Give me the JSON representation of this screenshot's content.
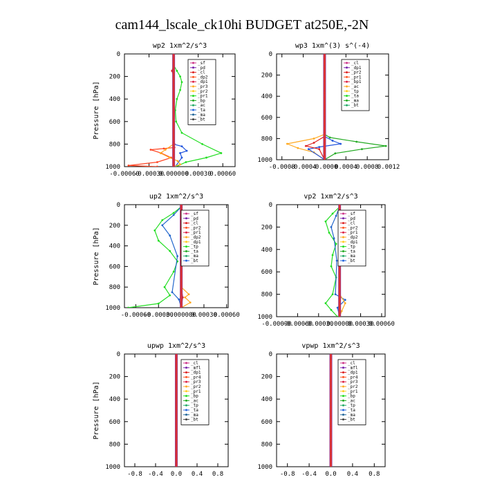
{
  "figure_title": "cam144_lscale_ck10hi  BUDGET at250E,-2N",
  "chart_data": [
    {
      "type": "line",
      "title": "wp2   1xm^2/s^3",
      "ylabel": "Pressure [hPa]",
      "ylim": [
        1000,
        0
      ],
      "yticks": [
        "0",
        "200",
        "400",
        "600",
        "800",
        "1000"
      ],
      "xlim": [
        -0.0006,
        0.00075
      ],
      "xticks": [
        {
          "v": -0.0006,
          "t": "-0.00060"
        },
        {
          "v": -0.0003,
          "t": "-0.00030"
        },
        {
          "v": 0,
          "t": "0.000000"
        },
        {
          "v": 0.0003,
          "t": "0.00030"
        },
        {
          "v": 0.0006,
          "t": "0.00060"
        }
      ],
      "legend": [
        "_sf",
        "_pd",
        "_cl",
        "_dp2",
        "_dp1",
        "_pr3",
        "_pr2",
        "_pr1",
        "_bp",
        "_ac",
        "_ta",
        "_ma",
        "_bt"
      ],
      "series": [
        {
          "name": "_pr1",
          "color": "#22dd22",
          "x": [
            0,
            4e-05,
            8e-05,
            0.0001,
            8e-05,
            4e-05,
            2e-05,
            3e-05,
            0.0001,
            0.00035,
            0.00058,
            0.0004,
            0.00015,
            3e-05
          ],
          "y": [
            100,
            150,
            200,
            250,
            320,
            400,
            500,
            600,
            700,
            800,
            880,
            920,
            960,
            1000
          ]
        },
        {
          "name": "_dp1",
          "color": "#2255dd",
          "x": [
            0,
            0,
            0,
            0.0001,
            0.00016,
            8e-05,
            0.0001,
            2e-05
          ],
          "y": [
            0,
            600,
            800,
            820,
            860,
            880,
            920,
            1000
          ]
        },
        {
          "name": "_dp2",
          "color": "#ff4422",
          "x": [
            0,
            1e-05,
            -0.00012,
            -0.00028,
            -0.00015,
            -3e-05,
            -0.0002,
            -0.00055,
            -0.0002
          ],
          "y": [
            800,
            830,
            840,
            850,
            880,
            920,
            960,
            990,
            1000
          ]
        },
        {
          "name": "_pr2",
          "color": "#ffaa22",
          "x": [
            0,
            0,
            -0.0001,
            -0.00016,
            -5e-05,
            5e-05,
            8e-05,
            0
          ],
          "y": [
            0,
            800,
            850,
            880,
            920,
            950,
            980,
            1000
          ]
        },
        {
          "name": "_cl",
          "color": "#dd2222",
          "x": [
            0,
            -2e-05,
            0,
            0,
            1e-05,
            0
          ],
          "y": [
            100,
            150,
            200,
            500,
            800,
            1000
          ]
        }
      ]
    },
    {
      "type": "line",
      "title": "wp3   1xm^(3) s^(-4)",
      "ylabel": "",
      "ylim": [
        1000,
        0
      ],
      "yticks": [
        "0",
        "200",
        "400",
        "600",
        "800",
        "1000"
      ],
      "xlim": [
        -0.0009,
        0.0012
      ],
      "xticks": [
        {
          "v": -0.0008,
          "t": "-0.0008"
        },
        {
          "v": -0.0004,
          "t": "-0.0004"
        },
        {
          "v": 0,
          "t": "-0.0000"
        },
        {
          "v": 0.0004,
          "t": "0.0004"
        },
        {
          "v": 0.0008,
          "t": "0.0008"
        },
        {
          "v": 0.0012,
          "t": "0.0012"
        }
      ],
      "legend": [
        "_cl",
        "_dp1",
        "_pr2",
        "_pr1",
        "_bp1",
        "_ac",
        "_tp",
        "_ta",
        "_ma",
        "_bt"
      ],
      "series": [
        {
          "name": "_bp1",
          "color": "#22aa22",
          "x": [
            0,
            0,
            0.0001,
            0.0006,
            0.00115,
            0.0007,
            0.0002,
            0
          ],
          "y": [
            0,
            760,
            790,
            830,
            870,
            900,
            940,
            1000
          ]
        },
        {
          "name": "_pr2",
          "color": "#ffaa22",
          "x": [
            0,
            -0.0002,
            -0.0007,
            -0.0005,
            -0.0002,
            0
          ],
          "y": [
            760,
            800,
            850,
            890,
            930,
            1000
          ]
        },
        {
          "name": "_dp1",
          "color": "#2255dd",
          "x": [
            0,
            0.00015,
            0.0003,
            -0.0001,
            -0.0003,
            0
          ],
          "y": [
            780,
            820,
            850,
            880,
            900,
            1000
          ]
        },
        {
          "name": "_cl",
          "color": "#dd2222",
          "x": [
            0,
            -0.0002,
            -0.00035,
            -0.0001,
            0
          ],
          "y": [
            780,
            840,
            870,
            900,
            1000
          ]
        }
      ]
    },
    {
      "type": "line",
      "title": "up2   1xm^2/s^3",
      "ylabel": "Pressure [hPa]",
      "ylim": [
        1000,
        0
      ],
      "yticks": [
        "0",
        "200",
        "400",
        "600",
        "800",
        "1000"
      ],
      "xlim": [
        -0.00075,
        0.00062
      ],
      "xticks": [
        {
          "v": -0.0006,
          "t": "-0.00060"
        },
        {
          "v": -0.0003,
          "t": "-0.00030"
        },
        {
          "v": 0,
          "t": "0.000000"
        },
        {
          "v": 0.0003,
          "t": "0.00030"
        },
        {
          "v": 0.0006,
          "t": "0.00060"
        }
      ],
      "legend": [
        "_sf",
        "_pd",
        "_cl",
        "_pr2",
        "_pr1",
        "_dp2",
        "_dp1",
        "_tp",
        "_ta",
        "_ma",
        "_bt"
      ],
      "series": [
        {
          "name": "_pr1",
          "color": "#22dd22",
          "x": [
            0,
            -0.0001,
            -0.00025,
            -0.00035,
            -0.0003,
            -0.00015,
            -5e-05,
            -0.0001,
            -0.00022,
            -0.00015,
            -0.0003,
            -0.0007
          ],
          "y": [
            20,
            80,
            150,
            250,
            350,
            450,
            550,
            650,
            800,
            880,
            960,
            1000
          ]
        },
        {
          "name": "_dp1",
          "color": "#2266cc",
          "x": [
            0,
            -0.0001,
            -0.00025,
            -0.00015,
            -5e-05,
            -0.00012,
            -3e-05,
            0
          ],
          "y": [
            20,
            100,
            200,
            300,
            500,
            850,
            920,
            1000
          ]
        },
        {
          "name": "_pr2",
          "color": "#ffaa22",
          "x": [
            0,
            0,
            0.0001,
            5e-05,
            0.00012,
            0
          ],
          "y": [
            0,
            800,
            870,
            900,
            950,
            1000
          ]
        },
        {
          "name": "_cl",
          "color": "#dd2222",
          "x": [
            0,
            1e-05,
            0,
            2e-05,
            0
          ],
          "y": [
            0,
            400,
            800,
            900,
            1000
          ]
        }
      ]
    },
    {
      "type": "line",
      "title": "vp2   1xm^2/s^3",
      "ylabel": "",
      "ylim": [
        1000,
        0
      ],
      "yticks": [
        "0",
        "200",
        "400",
        "600",
        "800",
        "1000"
      ],
      "xlim": [
        -0.0009,
        0.00065
      ],
      "xticks": [
        {
          "v": -0.0009,
          "t": "-0.00090"
        },
        {
          "v": -0.0006,
          "t": "-0.00060"
        },
        {
          "v": -0.0003,
          "t": "-0.00030"
        },
        {
          "v": 0,
          "t": "0.00000"
        },
        {
          "v": 0.0003,
          "t": "0.00030"
        },
        {
          "v": 0.0006,
          "t": "0.00060"
        }
      ],
      "legend": [
        "_sf",
        "_pd",
        "_cl",
        "_pr2",
        "_pr1",
        "_dp2",
        "_dp1",
        "_tp",
        "_ta",
        "_ma",
        "_bt"
      ],
      "series": [
        {
          "name": "_pr1",
          "color": "#22dd22",
          "x": [
            0,
            -0.0001,
            -0.0002,
            -0.00015,
            -5e-05,
            -0.0001,
            -0.00012,
            -5e-05,
            -0.0001,
            -0.0002,
            -0.00012,
            -3e-05
          ],
          "y": [
            20,
            80,
            150,
            250,
            350,
            450,
            550,
            650,
            800,
            880,
            940,
            1000
          ]
        },
        {
          "name": "_dp1",
          "color": "#2266cc",
          "x": [
            0,
            -5e-05,
            -0.00012,
            -8e-05,
            -4e-05,
            -6e-05,
            8e-05,
            -3e-05,
            0
          ],
          "y": [
            20,
            100,
            200,
            300,
            500,
            800,
            850,
            920,
            1000
          ]
        },
        {
          "name": "_pr2",
          "color": "#ffaa22",
          "x": [
            0,
            0,
            8e-05,
            3e-05,
            0
          ],
          "y": [
            0,
            800,
            880,
            950,
            1000
          ]
        },
        {
          "name": "_cl",
          "color": "#dd2222",
          "x": [
            0,
            1e-05,
            0,
            0
          ],
          "y": [
            0,
            400,
            850,
            1000
          ]
        }
      ]
    },
    {
      "type": "line",
      "title": "upwp   1xm^2/s^3",
      "ylabel": "Pressure [hPa]",
      "ylim": [
        1000,
        0
      ],
      "yticks": [
        "0",
        "200",
        "400",
        "600",
        "800",
        "1000"
      ],
      "xlim": [
        -1,
        1
      ],
      "xticks": [
        {
          "v": -0.8,
          "t": "-0.8"
        },
        {
          "v": -0.4,
          "t": "-0.4"
        },
        {
          "v": 0,
          "t": "0.0"
        },
        {
          "v": 0.4,
          "t": "0.4"
        },
        {
          "v": 0.8,
          "t": "0.8"
        }
      ],
      "legend": [
        "_cl",
        "_mfl",
        "_dp1",
        "_pr4",
        "_pr3",
        "_pr2",
        "_pr1",
        "_bp",
        "_ac",
        "_tp",
        "_ta",
        "_ma",
        "_bt"
      ],
      "series": []
    },
    {
      "type": "line",
      "title": "vpwp   1xm^2/s^3",
      "ylabel": "",
      "ylim": [
        1000,
        0
      ],
      "yticks": [
        "0",
        "200",
        "400",
        "600",
        "800",
        "1000"
      ],
      "xlim": [
        -1,
        1
      ],
      "xticks": [
        {
          "v": -0.8,
          "t": "-0.8"
        },
        {
          "v": -0.4,
          "t": "-0.4"
        },
        {
          "v": 0,
          "t": "0.0"
        },
        {
          "v": 0.4,
          "t": "0.4"
        },
        {
          "v": 0.8,
          "t": "0.8"
        }
      ],
      "legend": [
        "_cl",
        "_mfl",
        "_dp1",
        "_pr4",
        "_pr3",
        "_pr2",
        "_pr1",
        "_bp",
        "_ac",
        "_tp",
        "_ta",
        "_ma",
        "_bt"
      ],
      "series": []
    }
  ],
  "colors": {
    "zero_line": "#7733aa",
    "legend": [
      "#cc3388",
      "#7722aa",
      "#dd2222",
      "#ff5522",
      "#dd2244",
      "#ffaa22",
      "#ffcc22",
      "#22dd22",
      "#22aa22",
      "#22aa66",
      "#2266dd",
      "#226699",
      "#444444",
      "#33ccee"
    ]
  }
}
